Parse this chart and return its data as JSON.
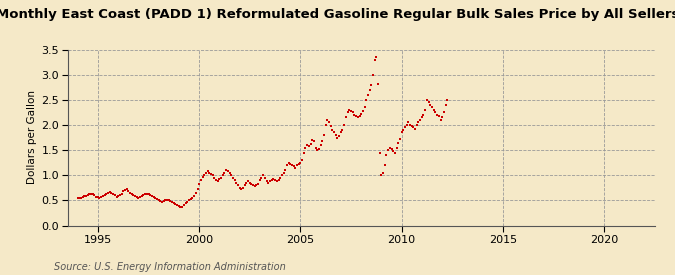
{
  "title": "Monthly East Coast (PADD 1) Reformulated Gasoline Regular Bulk Sales Price by All Sellers",
  "ylabel": "Dollars per Gallon",
  "source": "Source: U.S. Energy Information Administration",
  "background_color": "#f5e9c8",
  "plot_bg_color": "#f5e9c8",
  "dot_color": "#cc0000",
  "xlim": [
    1993.5,
    2022.5
  ],
  "ylim": [
    0.0,
    3.5
  ],
  "yticks": [
    0.0,
    0.5,
    1.0,
    1.5,
    2.0,
    2.5,
    3.0,
    3.5
  ],
  "xticks": [
    1995,
    2000,
    2005,
    2010,
    2015,
    2020
  ],
  "data": [
    [
      1994.0,
      0.55
    ],
    [
      1994.08,
      0.54
    ],
    [
      1994.17,
      0.55
    ],
    [
      1994.25,
      0.57
    ],
    [
      1994.33,
      0.58
    ],
    [
      1994.42,
      0.59
    ],
    [
      1994.5,
      0.6
    ],
    [
      1994.58,
      0.62
    ],
    [
      1994.67,
      0.63
    ],
    [
      1994.75,
      0.63
    ],
    [
      1994.83,
      0.6
    ],
    [
      1994.92,
      0.57
    ],
    [
      1995.0,
      0.56
    ],
    [
      1995.08,
      0.55
    ],
    [
      1995.17,
      0.56
    ],
    [
      1995.25,
      0.58
    ],
    [
      1995.33,
      0.6
    ],
    [
      1995.42,
      0.62
    ],
    [
      1995.5,
      0.64
    ],
    [
      1995.58,
      0.66
    ],
    [
      1995.67,
      0.65
    ],
    [
      1995.75,
      0.63
    ],
    [
      1995.83,
      0.6
    ],
    [
      1995.92,
      0.57
    ],
    [
      1996.0,
      0.58
    ],
    [
      1996.08,
      0.6
    ],
    [
      1996.17,
      0.63
    ],
    [
      1996.25,
      0.68
    ],
    [
      1996.33,
      0.7
    ],
    [
      1996.42,
      0.72
    ],
    [
      1996.5,
      0.68
    ],
    [
      1996.58,
      0.65
    ],
    [
      1996.67,
      0.63
    ],
    [
      1996.75,
      0.6
    ],
    [
      1996.83,
      0.58
    ],
    [
      1996.92,
      0.56
    ],
    [
      1997.0,
      0.55
    ],
    [
      1997.08,
      0.56
    ],
    [
      1997.17,
      0.58
    ],
    [
      1997.25,
      0.6
    ],
    [
      1997.33,
      0.62
    ],
    [
      1997.42,
      0.63
    ],
    [
      1997.5,
      0.62
    ],
    [
      1997.58,
      0.61
    ],
    [
      1997.67,
      0.59
    ],
    [
      1997.75,
      0.56
    ],
    [
      1997.83,
      0.54
    ],
    [
      1997.92,
      0.52
    ],
    [
      1998.0,
      0.5
    ],
    [
      1998.08,
      0.48
    ],
    [
      1998.17,
      0.47
    ],
    [
      1998.25,
      0.48
    ],
    [
      1998.33,
      0.5
    ],
    [
      1998.42,
      0.51
    ],
    [
      1998.5,
      0.5
    ],
    [
      1998.58,
      0.48
    ],
    [
      1998.67,
      0.46
    ],
    [
      1998.75,
      0.44
    ],
    [
      1998.83,
      0.42
    ],
    [
      1998.92,
      0.4
    ],
    [
      1999.0,
      0.38
    ],
    [
      1999.08,
      0.36
    ],
    [
      1999.17,
      0.37
    ],
    [
      1999.25,
      0.4
    ],
    [
      1999.33,
      0.44
    ],
    [
      1999.42,
      0.47
    ],
    [
      1999.5,
      0.5
    ],
    [
      1999.58,
      0.52
    ],
    [
      1999.67,
      0.55
    ],
    [
      1999.75,
      0.58
    ],
    [
      1999.83,
      0.65
    ],
    [
      1999.92,
      0.72
    ],
    [
      2000.0,
      0.82
    ],
    [
      2000.08,
      0.9
    ],
    [
      2000.17,
      0.96
    ],
    [
      2000.25,
      1.0
    ],
    [
      2000.33,
      1.05
    ],
    [
      2000.42,
      1.08
    ],
    [
      2000.5,
      1.05
    ],
    [
      2000.58,
      1.02
    ],
    [
      2000.67,
      1.0
    ],
    [
      2000.75,
      0.95
    ],
    [
      2000.83,
      0.9
    ],
    [
      2000.92,
      0.88
    ],
    [
      2001.0,
      0.92
    ],
    [
      2001.08,
      0.95
    ],
    [
      2001.17,
      1.0
    ],
    [
      2001.25,
      1.05
    ],
    [
      2001.33,
      1.1
    ],
    [
      2001.42,
      1.08
    ],
    [
      2001.5,
      1.05
    ],
    [
      2001.58,
      1.0
    ],
    [
      2001.67,
      0.95
    ],
    [
      2001.75,
      0.9
    ],
    [
      2001.83,
      0.85
    ],
    [
      2001.92,
      0.8
    ],
    [
      2002.0,
      0.75
    ],
    [
      2002.08,
      0.72
    ],
    [
      2002.17,
      0.75
    ],
    [
      2002.25,
      0.8
    ],
    [
      2002.33,
      0.85
    ],
    [
      2002.42,
      0.88
    ],
    [
      2002.5,
      0.85
    ],
    [
      2002.58,
      0.82
    ],
    [
      2002.67,
      0.8
    ],
    [
      2002.75,
      0.78
    ],
    [
      2002.83,
      0.8
    ],
    [
      2002.92,
      0.82
    ],
    [
      2003.0,
      0.9
    ],
    [
      2003.08,
      0.95
    ],
    [
      2003.17,
      1.0
    ],
    [
      2003.25,
      0.95
    ],
    [
      2003.33,
      0.88
    ],
    [
      2003.42,
      0.85
    ],
    [
      2003.5,
      0.88
    ],
    [
      2003.58,
      0.9
    ],
    [
      2003.67,
      0.92
    ],
    [
      2003.75,
      0.9
    ],
    [
      2003.83,
      0.88
    ],
    [
      2003.92,
      0.9
    ],
    [
      2004.0,
      0.95
    ],
    [
      2004.08,
      1.0
    ],
    [
      2004.17,
      1.05
    ],
    [
      2004.25,
      1.1
    ],
    [
      2004.33,
      1.2
    ],
    [
      2004.42,
      1.25
    ],
    [
      2004.5,
      1.22
    ],
    [
      2004.58,
      1.2
    ],
    [
      2004.67,
      1.18
    ],
    [
      2004.75,
      1.15
    ],
    [
      2004.83,
      1.2
    ],
    [
      2004.92,
      1.22
    ],
    [
      2005.0,
      1.25
    ],
    [
      2005.08,
      1.3
    ],
    [
      2005.17,
      1.45
    ],
    [
      2005.25,
      1.55
    ],
    [
      2005.33,
      1.6
    ],
    [
      2005.42,
      1.58
    ],
    [
      2005.5,
      1.62
    ],
    [
      2005.58,
      1.7
    ],
    [
      2005.67,
      1.68
    ],
    [
      2005.75,
      1.55
    ],
    [
      2005.83,
      1.5
    ],
    [
      2005.92,
      1.52
    ],
    [
      2006.0,
      1.6
    ],
    [
      2006.08,
      1.68
    ],
    [
      2006.17,
      1.8
    ],
    [
      2006.25,
      2.0
    ],
    [
      2006.33,
      2.1
    ],
    [
      2006.42,
      2.05
    ],
    [
      2006.5,
      1.98
    ],
    [
      2006.58,
      1.9
    ],
    [
      2006.67,
      1.85
    ],
    [
      2006.75,
      1.8
    ],
    [
      2006.83,
      1.75
    ],
    [
      2006.92,
      1.78
    ],
    [
      2007.0,
      1.85
    ],
    [
      2007.08,
      1.9
    ],
    [
      2007.17,
      2.0
    ],
    [
      2007.25,
      2.15
    ],
    [
      2007.33,
      2.25
    ],
    [
      2007.42,
      2.3
    ],
    [
      2007.5,
      2.28
    ],
    [
      2007.58,
      2.25
    ],
    [
      2007.67,
      2.2
    ],
    [
      2007.75,
      2.18
    ],
    [
      2007.83,
      2.15
    ],
    [
      2007.92,
      2.18
    ],
    [
      2008.0,
      2.22
    ],
    [
      2008.08,
      2.28
    ],
    [
      2008.17,
      2.35
    ],
    [
      2008.25,
      2.5
    ],
    [
      2008.33,
      2.6
    ],
    [
      2008.42,
      2.7
    ],
    [
      2008.5,
      2.8
    ],
    [
      2008.58,
      3.0
    ],
    [
      2008.67,
      3.3
    ],
    [
      2008.75,
      3.35
    ],
    [
      2008.83,
      2.82
    ],
    [
      2008.92,
      1.45
    ],
    [
      2009.0,
      1.0
    ],
    [
      2009.08,
      1.05
    ],
    [
      2009.17,
      1.2
    ],
    [
      2009.25,
      1.4
    ],
    [
      2009.33,
      1.5
    ],
    [
      2009.42,
      1.55
    ],
    [
      2009.5,
      1.52
    ],
    [
      2009.58,
      1.48
    ],
    [
      2009.67,
      1.45
    ],
    [
      2009.75,
      1.55
    ],
    [
      2009.83,
      1.65
    ],
    [
      2009.92,
      1.72
    ],
    [
      2010.0,
      1.85
    ],
    [
      2010.08,
      1.9
    ],
    [
      2010.17,
      1.95
    ],
    [
      2010.25,
      2.0
    ],
    [
      2010.33,
      2.05
    ],
    [
      2010.42,
      2.0
    ],
    [
      2010.5,
      1.98
    ],
    [
      2010.58,
      1.95
    ],
    [
      2010.67,
      1.92
    ],
    [
      2010.75,
      2.0
    ],
    [
      2010.83,
      2.05
    ],
    [
      2010.92,
      2.1
    ],
    [
      2011.0,
      2.15
    ],
    [
      2011.08,
      2.2
    ],
    [
      2011.17,
      2.3
    ],
    [
      2011.25,
      2.5
    ],
    [
      2011.33,
      2.45
    ],
    [
      2011.42,
      2.4
    ],
    [
      2011.5,
      2.35
    ],
    [
      2011.58,
      2.3
    ],
    [
      2011.67,
      2.25
    ],
    [
      2011.75,
      2.2
    ],
    [
      2011.83,
      2.18
    ],
    [
      2011.92,
      2.1
    ],
    [
      2012.0,
      2.15
    ],
    [
      2012.08,
      2.25
    ],
    [
      2012.17,
      2.4
    ],
    [
      2012.25,
      2.5
    ]
  ]
}
